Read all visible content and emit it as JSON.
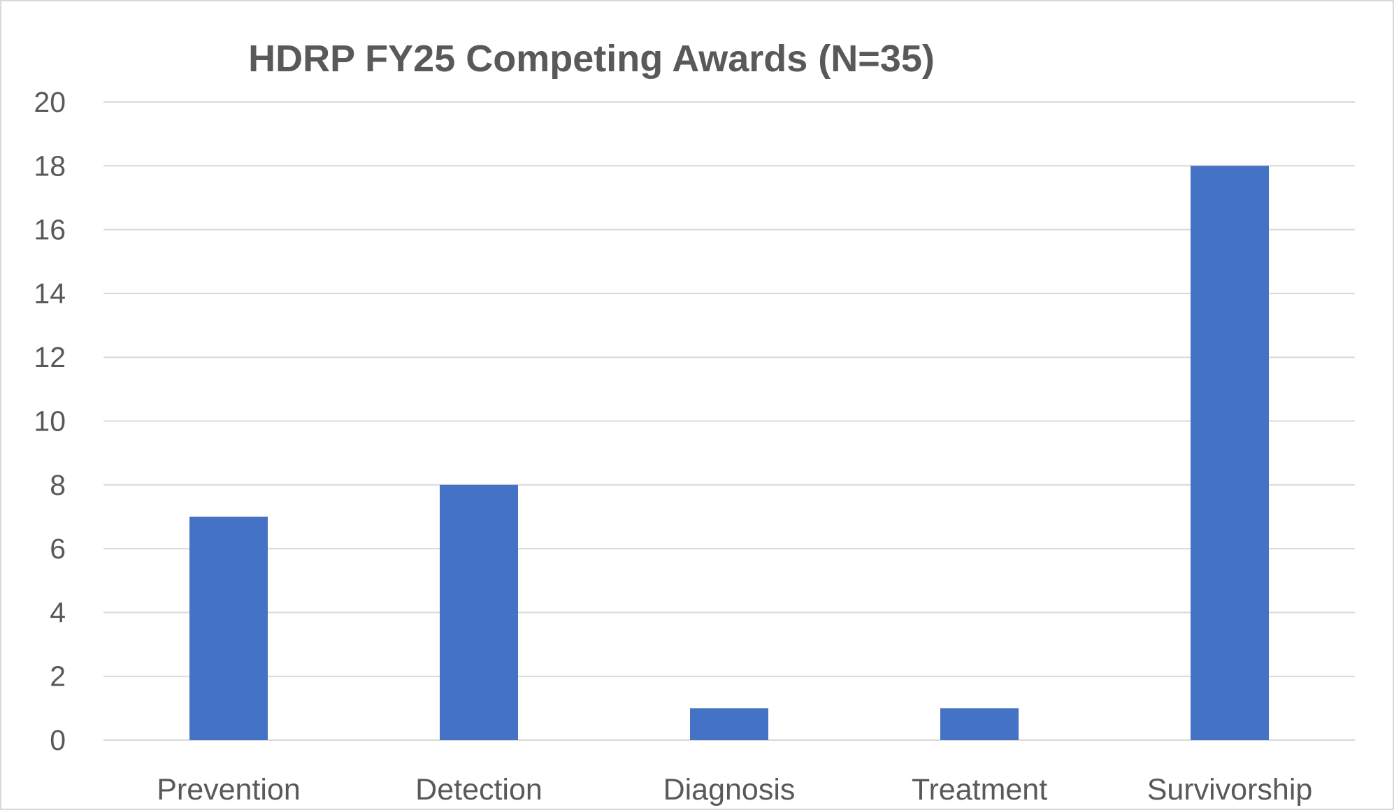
{
  "chart_data": {
    "type": "bar",
    "title": "HDRP FY25 Competing Awards (N=35)",
    "xlabel": "",
    "ylabel": "",
    "categories": [
      "Prevention",
      "Detection",
      "Diagnosis",
      "Treatment",
      "Survivorship"
    ],
    "values": [
      7,
      8,
      1,
      1,
      18
    ],
    "ylim": [
      0,
      20
    ],
    "yticks": [
      0,
      2,
      4,
      6,
      8,
      10,
      12,
      14,
      16,
      18,
      20
    ],
    "grid": true,
    "legend": "none",
    "colors": {
      "bar": "#4472C4",
      "grid": "#D9D9D9",
      "text": "#595959",
      "border": "#D9D9D9"
    }
  }
}
